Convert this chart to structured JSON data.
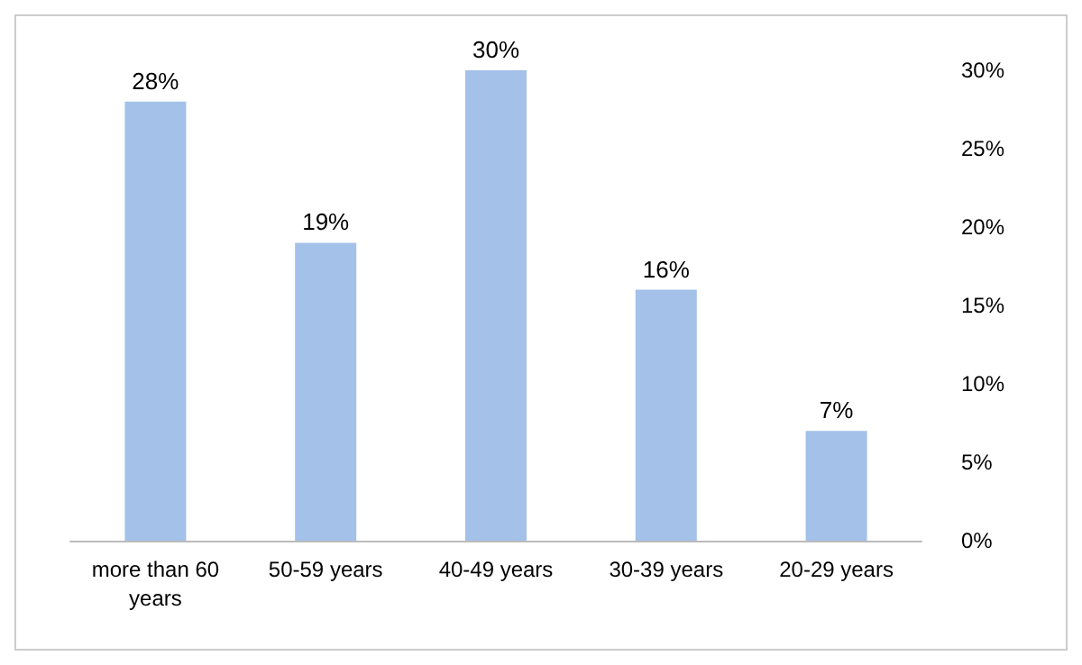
{
  "chart_data": {
    "type": "bar",
    "categories": [
      "more than 60\nyears",
      "50-59 years",
      "40-49 years",
      "30-39 years",
      "20-29 years"
    ],
    "values": [
      28,
      19,
      30,
      16,
      7
    ],
    "value_labels": [
      "28%",
      "19%",
      "30%",
      "16%",
      "7%"
    ],
    "color": "#a3c1e9",
    "ylim": [
      0,
      30
    ],
    "yticks": [
      {
        "value": 0,
        "label": "0%"
      },
      {
        "value": 5,
        "label": "5%"
      },
      {
        "value": 10,
        "label": "10%"
      },
      {
        "value": 15,
        "label": "15%"
      },
      {
        "value": 20,
        "label": "20%"
      },
      {
        "value": 25,
        "label": "25%"
      },
      {
        "value": 30,
        "label": "30%"
      }
    ],
    "grid": false
  }
}
